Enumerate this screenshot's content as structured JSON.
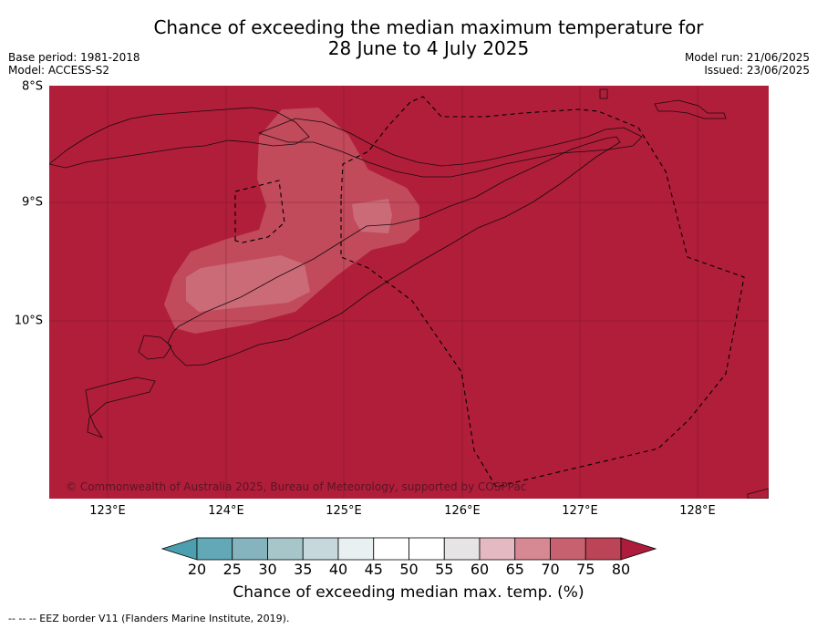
{
  "title": {
    "line1": "Chance of exceeding the median maximum temperature for",
    "line2": "28 June to 4 July 2025"
  },
  "meta": {
    "base_period": "Base period: 1981-2018",
    "model": "Model: ACCESS-S2",
    "model_run": "Model run: 21/06/2025",
    "issued": "Issued: 23/06/2025"
  },
  "axes": {
    "lat_labels": [
      "8°S",
      "9°S",
      "10°S"
    ],
    "lon_labels": [
      "123°E",
      "124°E",
      "125°E",
      "126°E",
      "127°E",
      "128°E"
    ]
  },
  "copyright": "© Commonwealth of Australia 2025, Bureau of Meteorology, supported by COSPPac",
  "colorbar": {
    "ticks": [
      "20",
      "25",
      "30",
      "35",
      "40",
      "45",
      "50",
      "55",
      "60",
      "65",
      "70",
      "75",
      "80"
    ],
    "label": "Chance of exceeding median max. temp. (%)",
    "colors": [
      "#4b9fae",
      "#62a8b6",
      "#85b4be",
      "#a6c6ca",
      "#c6d8dc",
      "#e8f0f2",
      "#ffffff",
      "#ffffff",
      "#e7e4e5",
      "#e4b9c1",
      "#d68893",
      "#c8616f",
      "#bb4456",
      "#ad1c3b"
    ]
  },
  "map": {
    "background_color": "#b01e3a",
    "region_colors": {
      "band_75_80": "#c14a5b",
      "band_70_75": "#cb6b78",
      "band_65_70": "#d68893"
    }
  },
  "footer": "--  --  -- EEZ border V11 (Flanders Marine Institute, 2019)."
}
